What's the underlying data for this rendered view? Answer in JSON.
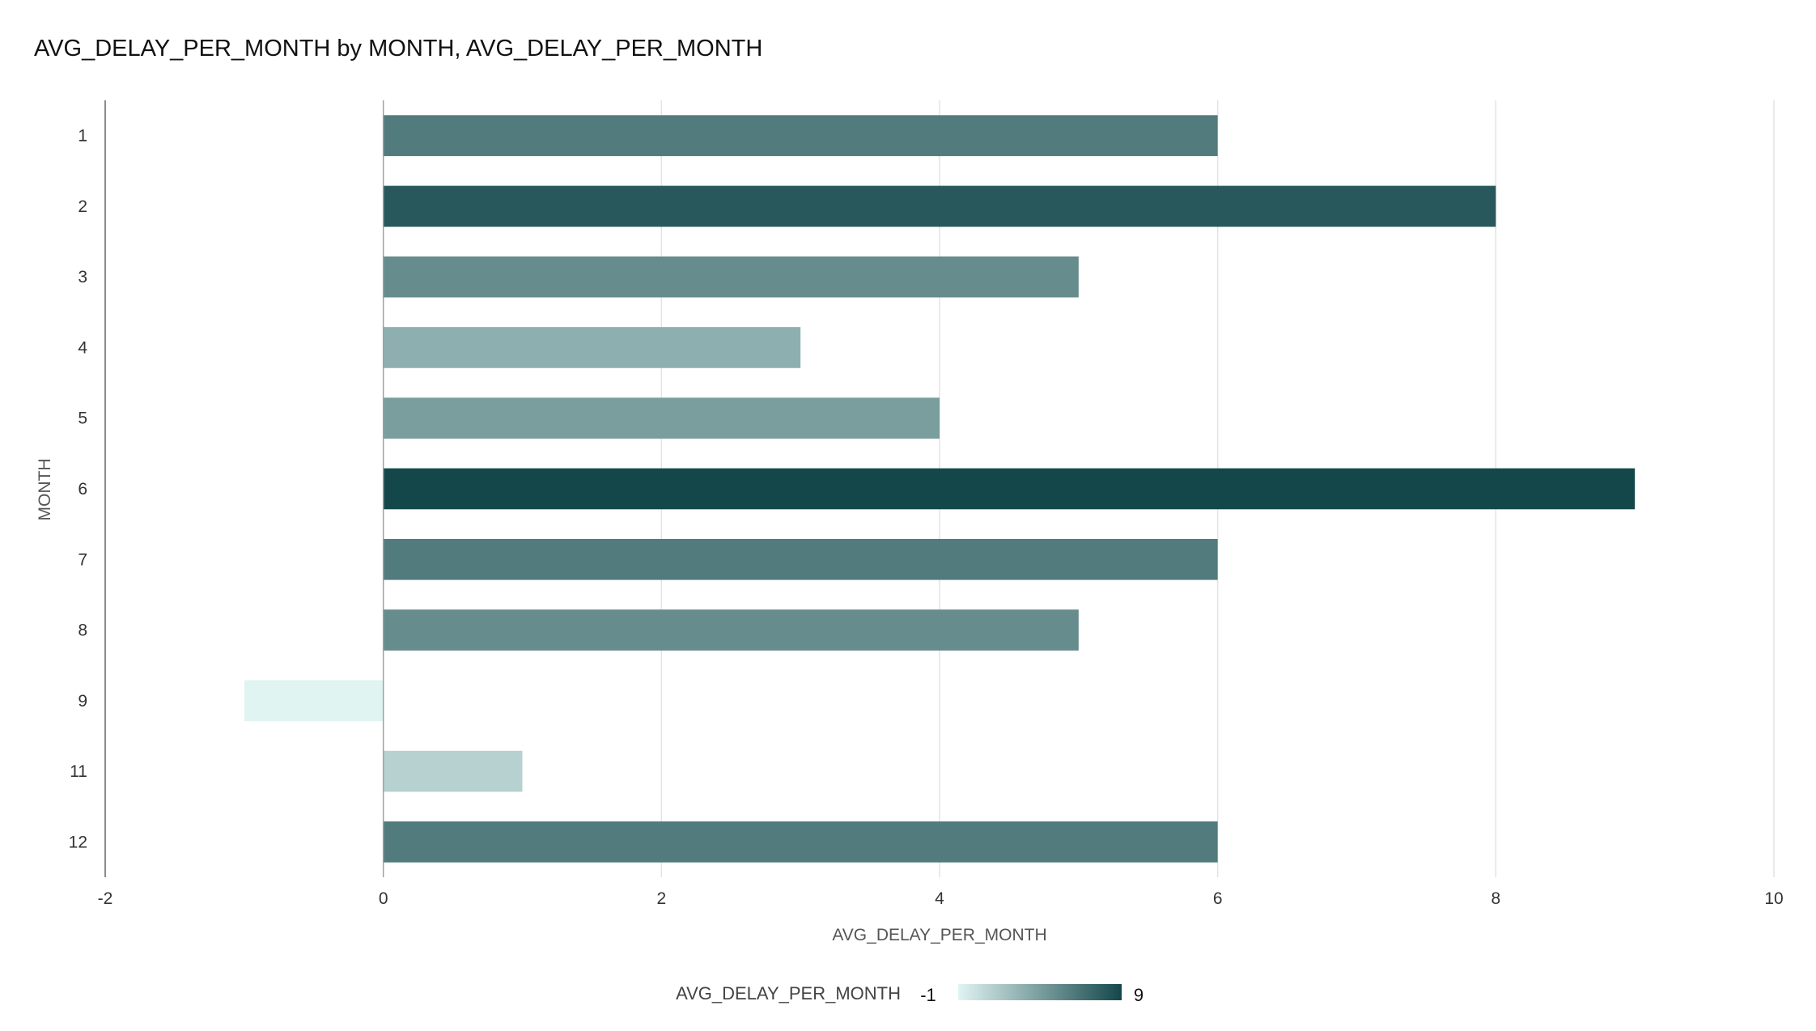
{
  "chart_data": {
    "type": "bar",
    "orientation": "horizontal",
    "title": "AVG_DELAY_PER_MONTH by MONTH, AVG_DELAY_PER_MONTH",
    "xlabel": "AVG_DELAY_PER_MONTH",
    "ylabel": "MONTH",
    "categories": [
      "1",
      "2",
      "3",
      "4",
      "5",
      "6",
      "7",
      "8",
      "9",
      "11",
      "12"
    ],
    "values": [
      6,
      8,
      5,
      3,
      4,
      9,
      6,
      5,
      -1,
      1,
      6
    ],
    "xlim": [
      -2,
      10
    ],
    "xticks": [
      "-2",
      "0",
      "2",
      "4",
      "6",
      "8",
      "10"
    ],
    "grid": true,
    "color_scale": {
      "title": "AVG_DELAY_PER_MONTH",
      "min_label": "-1",
      "max_label": "9",
      "min": -1,
      "max": 9,
      "low_color": "#e0f4f2",
      "high_color": "#14474a"
    },
    "legend_position": "bottom-center"
  }
}
